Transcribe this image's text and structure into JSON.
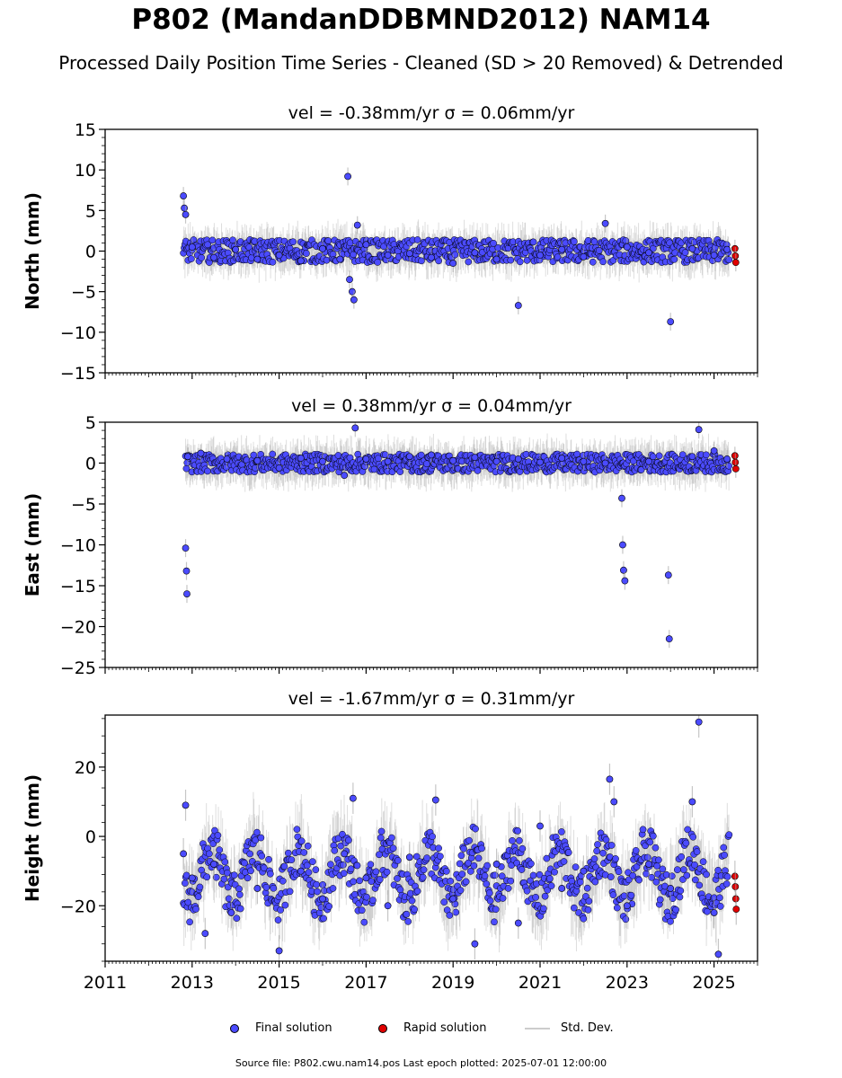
{
  "title": "P802 (MandanDDBMND2012) NAM14",
  "subtitle": "Processed Daily Position Time Series - Cleaned (SD > 20 Removed) & Detrended",
  "source_text": "Source file: P802.cwu.nam14.pos  Last epoch plotted: 2025-07-01 12:00:00",
  "legend": {
    "final": "Final solution",
    "rapid": "Rapid solution",
    "std": "Std. Dev."
  },
  "colors": {
    "final": "#4b4bff",
    "rapid": "#e00000",
    "std": "#a0a0a0",
    "edge": "#000000"
  },
  "chart_data": [
    {
      "type": "scatter",
      "title": "vel = -0.38mm/yr   σ = 0.06mm/yr",
      "ylabel": "North (mm)",
      "xlim": [
        2011,
        2026
      ],
      "ylim": [
        -15,
        15
      ],
      "yticks": [
        -15,
        -10,
        -5,
        0,
        5,
        10,
        15
      ],
      "series": [
        {
          "name": "Final solution",
          "x": [
            2012.8,
            2012.82,
            2012.85,
            2013.0,
            2013.5,
            2014.0,
            2014.5,
            2015.0,
            2015.5,
            2016.0,
            2016.4,
            2016.58,
            2016.62,
            2016.68,
            2016.72,
            2016.8,
            2017.0,
            2017.5,
            2018.0,
            2018.5,
            2019.0,
            2019.5,
            2020.0,
            2020.5,
            2021.0,
            2021.5,
            2022.0,
            2022.5,
            2023.0,
            2023.5,
            2024.0,
            2024.5,
            2025.0,
            2025.3
          ],
          "y": [
            6.8,
            5.3,
            4.5,
            0.5,
            -0.8,
            0.2,
            -1.0,
            -0.5,
            -1.2,
            0.3,
            -1.0,
            9.2,
            -3.5,
            -5.0,
            -6.0,
            3.2,
            0.8,
            -0.5,
            -0.3,
            -0.8,
            -1.5,
            -0.2,
            -1.0,
            -6.7,
            -0.5,
            0.2,
            -0.7,
            3.4,
            0.5,
            -0.2,
            -8.7,
            0.3,
            -0.5,
            0.2
          ]
        },
        {
          "name": "Rapid solution",
          "x": [
            2025.48,
            2025.49,
            2025.5
          ],
          "y": [
            0.3,
            -0.6,
            -1.4
          ]
        }
      ]
    },
    {
      "type": "scatter",
      "title": "vel = 0.38mm/yr   σ = 0.04mm/yr",
      "ylabel": "East (mm)",
      "xlim": [
        2011,
        2026
      ],
      "ylim": [
        -25,
        5
      ],
      "yticks": [
        -25,
        -20,
        -15,
        -10,
        -5,
        0,
        5
      ],
      "series": [
        {
          "name": "Final solution",
          "x": [
            2012.85,
            2012.87,
            2012.88,
            2012.9,
            2013.2,
            2013.8,
            2014.5,
            2015.0,
            2015.5,
            2016.0,
            2016.5,
            2016.75,
            2017.0,
            2017.5,
            2018.0,
            2018.5,
            2019.0,
            2019.5,
            2020.0,
            2020.5,
            2021.0,
            2021.5,
            2022.0,
            2022.5,
            2022.88,
            2022.9,
            2022.92,
            2022.95,
            2023.5,
            2023.95,
            2023.97,
            2024.5,
            2024.65,
            2025.0,
            2025.3
          ],
          "y": [
            -10.4,
            -13.2,
            -16.0,
            0.8,
            1.2,
            0.5,
            0.3,
            -0.6,
            0.6,
            0.2,
            -1.5,
            4.3,
            0.5,
            0.2,
            0.8,
            1.0,
            0.3,
            0.7,
            0.2,
            0.5,
            0.1,
            0.6,
            0.2,
            0.0,
            -4.3,
            -10.0,
            -13.1,
            -14.4,
            0.2,
            -13.7,
            -21.5,
            0.8,
            4.1,
            1.5,
            0.5
          ]
        },
        {
          "name": "Rapid solution",
          "x": [
            2025.48,
            2025.49,
            2025.5
          ],
          "y": [
            0.9,
            0.1,
            -0.7
          ]
        }
      ]
    },
    {
      "type": "scatter",
      "title": "vel = -1.67mm/yr   σ = 0.31mm/yr",
      "ylabel": "Height (mm)",
      "xlim": [
        2011,
        2026
      ],
      "ylim": [
        -36,
        35
      ],
      "yticks": [
        -20,
        0,
        20
      ],
      "xticks": [
        2011,
        2013,
        2015,
        2017,
        2019,
        2021,
        2023,
        2025
      ],
      "series": [
        {
          "name": "Final solution",
          "x": [
            2012.8,
            2012.85,
            2013.0,
            2013.3,
            2013.5,
            2013.9,
            2014.5,
            2015.0,
            2015.5,
            2016.0,
            2016.5,
            2016.7,
            2017.0,
            2017.5,
            2018.0,
            2018.6,
            2019.0,
            2019.5,
            2020.0,
            2020.5,
            2021.0,
            2021.5,
            2022.0,
            2022.6,
            2022.7,
            2023.0,
            2023.5,
            2024.0,
            2024.5,
            2024.65,
            2025.0,
            2025.1
          ],
          "y": [
            -5.0,
            9.0,
            -12.0,
            -28.0,
            -8.0,
            -22.0,
            -15.0,
            -33.0,
            -10.0,
            -18.0,
            -5.0,
            11.0,
            -12.0,
            -20.0,
            -6.0,
            10.5,
            -18.0,
            -31.0,
            -8.0,
            -25.0,
            3.0,
            -15.0,
            -10.0,
            16.5,
            10.0,
            -20.0,
            -8.0,
            -15.0,
            10.0,
            33.0,
            -22.0,
            -34.0
          ]
        },
        {
          "name": "Rapid solution",
          "x": [
            2025.48,
            2025.49,
            2025.5,
            2025.51
          ],
          "y": [
            -11.5,
            -14.5,
            -18.0,
            -21.0
          ]
        }
      ]
    }
  ]
}
